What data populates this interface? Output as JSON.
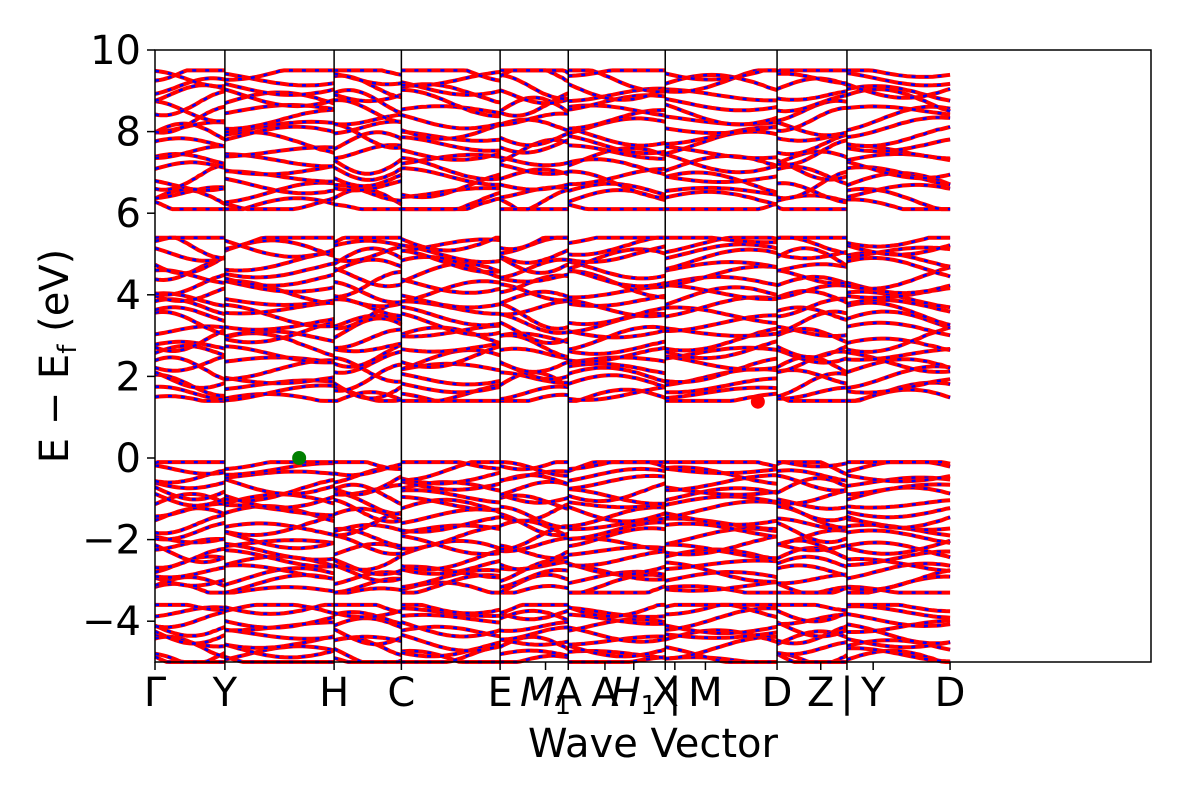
{
  "chart_data": {
    "type": "line",
    "xlabel": "Wave Vector",
    "ylabel": "E − E",
    "ylabel_sub": "f",
    "ylabel_unit": " (eV)",
    "ylim": [
      -5,
      10
    ],
    "y_ticks": [
      {
        "value": -4,
        "label": "−4"
      },
      {
        "value": -2,
        "label": "−2"
      },
      {
        "value": 0,
        "label": "0"
      },
      {
        "value": 2,
        "label": "2"
      },
      {
        "value": 4,
        "label": "4"
      },
      {
        "value": 6,
        "label": "6"
      },
      {
        "value": 8,
        "label": "8"
      },
      {
        "value": 10,
        "label": "10"
      }
    ],
    "xlim": [
      0,
      11.4
    ],
    "high_symmetry_points": [
      {
        "x": 0.0,
        "label": "Γ",
        "italic": false,
        "sub": ""
      },
      {
        "x": 0.8,
        "label": "Y",
        "italic": false,
        "sub": ""
      },
      {
        "x": 2.05,
        "label": "H",
        "italic": false,
        "sub": ""
      },
      {
        "x": 2.82,
        "label": "C",
        "italic": false,
        "sub": ""
      },
      {
        "x": 3.95,
        "label": "E",
        "italic": false,
        "sub": ""
      },
      {
        "x": 4.47,
        "label": "M",
        "italic": true,
        "sub": "1"
      },
      {
        "x": 4.73,
        "label": "A",
        "italic": false,
        "sub": ""
      },
      {
        "x": 5.15,
        "label": "A",
        "italic": false,
        "sub": ""
      },
      {
        "x": 5.48,
        "label": "H",
        "italic": true,
        "sub": "1"
      },
      {
        "x": 5.84,
        "label": "X",
        "italic": false,
        "sub": ""
      },
      {
        "x": 5.95,
        "label": "|",
        "italic": false,
        "sub": ""
      },
      {
        "x": 6.3,
        "label": "M",
        "italic": false,
        "sub": ""
      },
      {
        "x": 7.12,
        "label": "D",
        "italic": false,
        "sub": ""
      },
      {
        "x": 7.62,
        "label": "Z",
        "italic": false,
        "sub": ""
      },
      {
        "x": 7.92,
        "label": "|",
        "italic": false,
        "sub": ""
      },
      {
        "x": 8.22,
        "label": "Y",
        "italic": false,
        "sub": ""
      },
      {
        "x": 9.1,
        "label": "D",
        "italic": false,
        "sub": ""
      }
    ],
    "vertical_lines": [
      0.8,
      2.05,
      2.82,
      3.95,
      4.73,
      5.84,
      7.12,
      7.92
    ],
    "segments": [
      0,
      0.8,
      2.05,
      2.82,
      3.95,
      4.73,
      5.84,
      7.12,
      7.92,
      9.1
    ],
    "grid": false,
    "series": [
      {
        "color": "#ff0000",
        "style": "solid",
        "width": 4
      },
      {
        "color": "#0000ff",
        "style": "dotted",
        "width": 2.5
      }
    ],
    "band_groups": [
      {
        "min": -5.0,
        "max": -3.6,
        "count": 9
      },
      {
        "min": -3.3,
        "max": -0.1,
        "count": 20
      },
      {
        "min": 1.4,
        "max": 5.4,
        "count": 22
      },
      {
        "min": 6.1,
        "max": 9.5,
        "count": 18
      }
    ],
    "markers": [
      {
        "x": 1.65,
        "y": 0.0,
        "color": "#008000"
      },
      {
        "x": 6.9,
        "y": 1.38,
        "color": "#ff0000"
      }
    ]
  }
}
